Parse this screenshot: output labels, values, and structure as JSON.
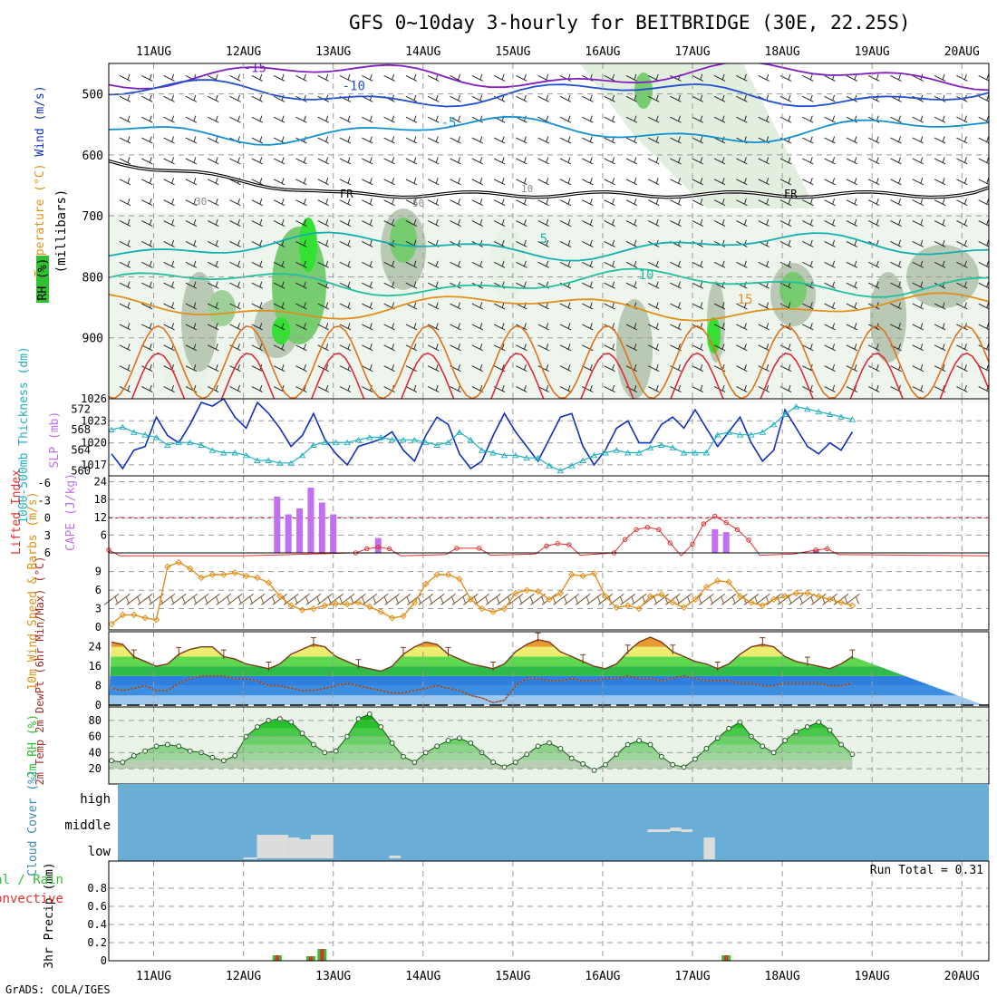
{
  "title": "GFS 0~10day 3-hourly for BEITBRIDGE (30E, 22.25S)",
  "footer": "GrADS: COLA/IGES",
  "days": [
    "11AUG",
    "12AUG",
    "13AUG",
    "14AUG",
    "15AUG",
    "16AUG",
    "17AUG",
    "18AUG",
    "19AUG",
    "20AUG"
  ],
  "colors": {
    "grid": "#9a9a9a",
    "frame": "#000000",
    "cyan": "#20b0c0",
    "blue": "#1030c0",
    "violet": "#c070f0",
    "red": "#e03030",
    "orange": "#e0901a",
    "green": "#30c030",
    "cloud_bg": "#6aaed6",
    "cloud_fill": "#dcdcdc"
  },
  "chart_data": [
    {
      "type": "contour",
      "panel": "upper-air",
      "ylabel_parts": [
        {
          "text": "RH (%)",
          "color": "#30c030"
        },
        {
          "text": "Temperature (°C)",
          "color": "#e0901a"
        },
        {
          "text": "Wind (m/s)",
          "color": "#1030c0"
        }
      ],
      "ylabel2": "(millibars)",
      "yticks": [
        500,
        600,
        700,
        800,
        900
      ],
      "ylim": [
        1000,
        450
      ],
      "temperature_contours": [
        {
          "label": "-15",
          "pressure": 470,
          "color": "#8020c0"
        },
        {
          "label": "-10",
          "pressure": 500,
          "color": "#2050d0"
        },
        {
          "label": "-5",
          "pressure": 560,
          "color": "#1090d0"
        },
        {
          "label": "5",
          "pressure": 750,
          "color": "#10b0b0"
        },
        {
          "label": "10",
          "pressure": 810,
          "color": "#20c0a0"
        },
        {
          "label": "15",
          "pressure": 850,
          "color": "#e0901a"
        }
      ],
      "freezing_label": "FR",
      "rh_labels": [
        "30",
        "50",
        "10"
      ]
    },
    {
      "type": "line",
      "panel": "slp-thickness",
      "ylabel_left": "1000-500mb Thickness (dm)",
      "ylabel_right": "SLP (mb)",
      "yticks_left": [
        560,
        564,
        568,
        572
      ],
      "yticks_right": [
        1017,
        1020,
        1023,
        1026
      ],
      "series": [
        {
          "name": "SLP (mb)",
          "axis": "right",
          "values": [
            1018.5,
            1016.5,
            1019.0,
            1019.5,
            1023.5,
            1021.0,
            1020.0,
            1022.5,
            1025.5,
            1025.0,
            1026.0,
            1023.5,
            1022.0,
            1025.5,
            1024.0,
            1022.0,
            1019.5,
            1021.0,
            1024.0,
            1020.5,
            1018.5,
            1017.0,
            1019.5,
            1020.0,
            1020.5,
            1021.5,
            1019.0,
            1017.5,
            1021.0,
            1023.5,
            1022.5,
            1018.5,
            1016.5,
            1017.5,
            1021.0,
            1024.0,
            1021.5,
            1019.5,
            1017.5,
            1020.5,
            1023.5,
            1024.0,
            1019.5,
            1017.0,
            1019.0,
            1022.0,
            1023.0,
            1020.0,
            1020.0,
            1022.5,
            1023.5,
            1022.0,
            1024.5,
            1022.0,
            1019.5,
            1021.5,
            1023.5,
            1020.0,
            1017.5,
            1019.0,
            1024.5,
            1022.0,
            1019.5,
            1018.5,
            1020.0,
            1019.0,
            1021.5
          ]
        },
        {
          "name": "Thickness (dm)",
          "axis": "left",
          "values": [
            568.0,
            568.5,
            567.5,
            567.0,
            566.5,
            565.0,
            565.5,
            565.5,
            565.0,
            564.0,
            563.5,
            563.5,
            563.0,
            562.0,
            562.0,
            561.5,
            561.5,
            563.0,
            565.0,
            565.5,
            565.5,
            565.5,
            566.0,
            566.5,
            566.5,
            566.0,
            566.0,
            566.0,
            565.5,
            565.0,
            565.5,
            567.5,
            566.0,
            564.0,
            563.5,
            563.0,
            563.0,
            562.5,
            562.5,
            561.0,
            560.0,
            561.0,
            562.0,
            563.0,
            563.5,
            564.0,
            563.5,
            563.5,
            564.5,
            565.0,
            564.5,
            563.5,
            563.5,
            563.5,
            567.0,
            567.5,
            567.0,
            567.0,
            567.5,
            569.0,
            571.0,
            572.5,
            572.0,
            571.5,
            571.0,
            570.5,
            570.0
          ]
        }
      ]
    },
    {
      "type": "bar",
      "panel": "cape-li",
      "ylabel_left": "Lifted Index",
      "ylabel_right": "CAPE (J/kg)",
      "yticks_left": [
        "-6",
        "-3",
        "0",
        "3",
        "6"
      ],
      "yticks_right": [
        6,
        12,
        18,
        24
      ],
      "cape_bars": [
        {
          "day": 12.375,
          "value": 19
        },
        {
          "day": 12.5,
          "value": 13
        },
        {
          "day": 12.625,
          "value": 15
        },
        {
          "day": 12.75,
          "value": 22
        },
        {
          "day": 12.875,
          "value": 17
        },
        {
          "day": 13.0,
          "value": 13
        },
        {
          "day": 13.5,
          "value": 5
        },
        {
          "day": 17.25,
          "value": 8
        },
        {
          "day": 17.375,
          "value": 7
        },
        {
          "day": 18.375,
          "value": 1
        }
      ],
      "li_line": [
        [
          10.5,
          5.5
        ],
        [
          10.625,
          6.5
        ],
        [
          11.0,
          6.5
        ],
        [
          12.0,
          6.5
        ],
        [
          13.25,
          6.0
        ],
        [
          13.375,
          5.3
        ],
        [
          13.5,
          5.0
        ],
        [
          13.625,
          5.3
        ],
        [
          13.75,
          6.5
        ],
        [
          14.25,
          6.3
        ],
        [
          14.375,
          5.2
        ],
        [
          14.625,
          5.2
        ],
        [
          14.75,
          6.4
        ],
        [
          15.25,
          6.2
        ],
        [
          15.375,
          4.8
        ],
        [
          15.5,
          4.4
        ],
        [
          15.625,
          4.6
        ],
        [
          15.75,
          6.4
        ],
        [
          16.125,
          6.0
        ],
        [
          16.25,
          3.7
        ],
        [
          16.375,
          2.0
        ],
        [
          16.5,
          1.6
        ],
        [
          16.625,
          2.0
        ],
        [
          16.75,
          4.3
        ],
        [
          16.875,
          6.5
        ],
        [
          17.0,
          4.5
        ],
        [
          17.125,
          1.0
        ],
        [
          17.25,
          -0.3
        ],
        [
          17.375,
          0.8
        ],
        [
          17.5,
          2.0
        ],
        [
          17.625,
          3.8
        ],
        [
          17.75,
          6.4
        ],
        [
          18.125,
          6.2
        ],
        [
          18.375,
          5.5
        ],
        [
          18.5,
          5.3
        ],
        [
          18.625,
          6.3
        ],
        [
          20.3,
          6.5
        ]
      ]
    },
    {
      "type": "line",
      "panel": "wind10m",
      "ylabel": "10m Wind Speed & Barbs (m/s)",
      "yticks": [
        0,
        3,
        6,
        9
      ],
      "values": [
        0.5,
        2.0,
        2.0,
        1.5,
        1.2,
        9.8,
        10.5,
        9.5,
        8.0,
        8.5,
        8.5,
        8.8,
        8.3,
        8.0,
        7.2,
        5.0,
        3.5,
        2.8,
        3.0,
        3.5,
        3.8,
        3.7,
        4.0,
        3.3,
        2.5,
        1.5,
        1.8,
        4.0,
        7.0,
        8.5,
        8.5,
        7.8,
        4.5,
        3.0,
        2.5,
        3.0,
        5.5,
        6.0,
        5.8,
        4.5,
        5.5,
        8.5,
        8.3,
        8.7,
        5.0,
        3.2,
        3.5,
        3.0,
        5.0,
        5.3,
        4.0,
        3.2,
        4.5,
        6.5,
        7.5,
        7.3,
        5.0,
        4.0,
        3.5,
        4.5,
        5.0,
        5.5,
        5.5,
        5.0,
        4.5,
        4.0,
        3.5
      ]
    },
    {
      "type": "area",
      "panel": "temp2m",
      "ylabel": "2m Temp 2m DewPt (6hr Min/Max) (°C)",
      "yticks": [
        0,
        8,
        16,
        24
      ],
      "temp_values": [
        26,
        25,
        20,
        18,
        16,
        17,
        21,
        23,
        24,
        24,
        20,
        19,
        17,
        16,
        15,
        17,
        21,
        23,
        25,
        24,
        20,
        18,
        16,
        15,
        14,
        16,
        21,
        24,
        26,
        25,
        21,
        19,
        17,
        16,
        15,
        17,
        22,
        25,
        27,
        26,
        22,
        20,
        18,
        16,
        15,
        17,
        22,
        26,
        28,
        26,
        22,
        20,
        18,
        17,
        15,
        17,
        21,
        24,
        25,
        24,
        20,
        18,
        17,
        16,
        15,
        17,
        20
      ],
      "dew_values": [
        7,
        6,
        7,
        8,
        6,
        6,
        9,
        11,
        12,
        12,
        12,
        11,
        11,
        10,
        8,
        8,
        7,
        6,
        6,
        7,
        8,
        9,
        8,
        7,
        6,
        5,
        5,
        6,
        7,
        8,
        7,
        6,
        4,
        3,
        1,
        2,
        8,
        11,
        11,
        10,
        10,
        11,
        10,
        10,
        11,
        11,
        12,
        11,
        11,
        10,
        11,
        12,
        11,
        10,
        10,
        10,
        9,
        9,
        8,
        8,
        9,
        9,
        9,
        9,
        8,
        8,
        9
      ]
    },
    {
      "type": "area",
      "panel": "rh2m",
      "ylabel": "2m RH (%)",
      "yticks": [
        20,
        40,
        60,
        80
      ],
      "values": [
        30,
        28,
        36,
        42,
        48,
        50,
        48,
        42,
        40,
        34,
        30,
        36,
        60,
        72,
        80,
        82,
        78,
        64,
        50,
        40,
        42,
        60,
        82,
        88,
        72,
        52,
        35,
        28,
        40,
        48,
        55,
        58,
        52,
        40,
        28,
        22,
        28,
        38,
        48,
        52,
        45,
        33,
        26,
        18,
        25,
        38,
        50,
        55,
        50,
        35,
        25,
        22,
        32,
        45,
        58,
        70,
        78,
        60,
        48,
        40,
        55,
        66,
        72,
        78,
        68,
        50,
        38
      ]
    },
    {
      "type": "bar",
      "panel": "cloud",
      "ylabel": "Cloud Cover (%)",
      "yticks": [
        "low",
        "middle",
        "high"
      ]
    },
    {
      "type": "bar",
      "panel": "precip",
      "ylabel": "3hr Precip (mm)",
      "legend": [
        {
          "text": "Total / Rain",
          "color": "#30c030"
        },
        {
          "text": "Convective",
          "color": "#e03030"
        }
      ],
      "run_total": "Run Total = 0.31",
      "yticks": [
        0,
        0.2,
        0.4,
        0.6,
        0.8
      ],
      "ylim": [
        0,
        1.0
      ],
      "bars": [
        {
          "day": 12.375,
          "total": 0.06,
          "convective": 0.06
        },
        {
          "day": 12.75,
          "total": 0.05,
          "convective": 0.05
        },
        {
          "day": 12.875,
          "total": 0.13,
          "convective": 0.13
        },
        {
          "day": 17.375,
          "total": 0.06,
          "convective": 0.06
        }
      ]
    }
  ]
}
